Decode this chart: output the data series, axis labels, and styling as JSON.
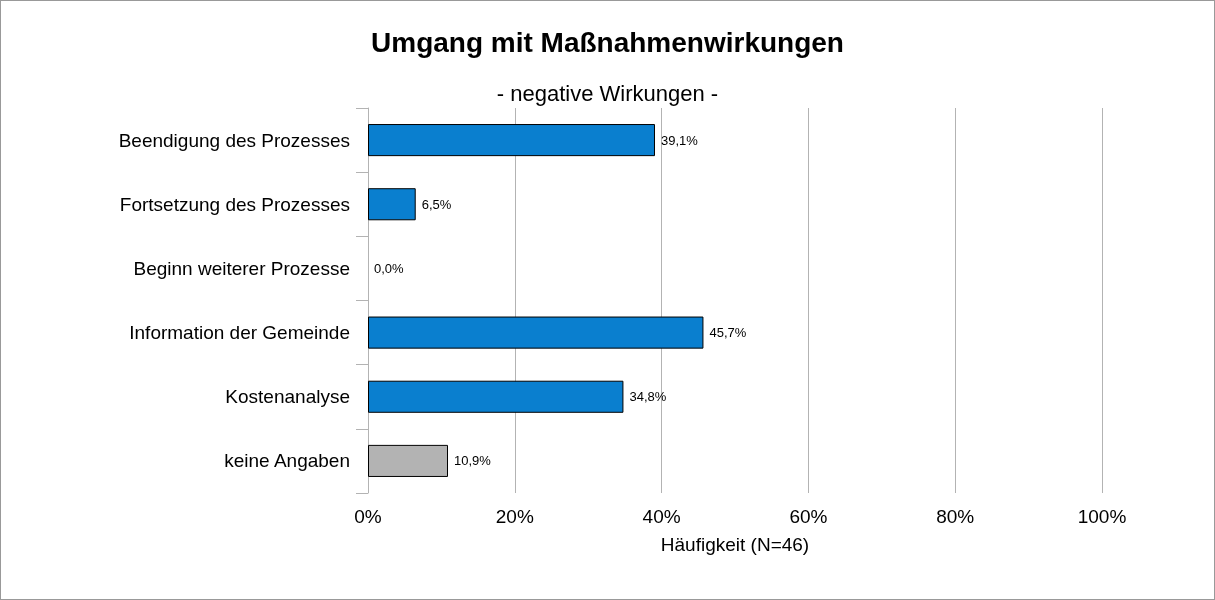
{
  "chart_data": {
    "type": "bar",
    "orientation": "horizontal",
    "title": "Umgang mit Maßnahmenwirkungen",
    "subtitle": "- negative Wirkungen -",
    "xlabel": "Häufigkeit (N=46)",
    "categories": [
      "Beendigung des Prozesses",
      "Fortsetzung des Prozesses",
      "Beginn weiterer Prozesse",
      "Information der Gemeinde",
      "Kostenanalyse",
      "keine Angaben"
    ],
    "values": [
      39.1,
      6.5,
      0.0,
      45.7,
      34.8,
      10.9
    ],
    "colors": [
      "#0a7fcf",
      "#0a7fcf",
      "#0a7fcf",
      "#0a7fcf",
      "#0a7fcf",
      "#b3b3b3"
    ],
    "value_labels": [
      "39,1%",
      "6,5%",
      "0,0%",
      "45,7%",
      "34,8%",
      "10,9%"
    ],
    "xlim": [
      0,
      100
    ],
    "xticks": [
      {
        "value": 0,
        "label": "0%"
      },
      {
        "value": 20,
        "label": "20%"
      },
      {
        "value": 40,
        "label": "40%"
      },
      {
        "value": 60,
        "label": "60%"
      },
      {
        "value": 80,
        "label": "80%"
      },
      {
        "value": 100,
        "label": "100%"
      }
    ],
    "grid": "x"
  }
}
